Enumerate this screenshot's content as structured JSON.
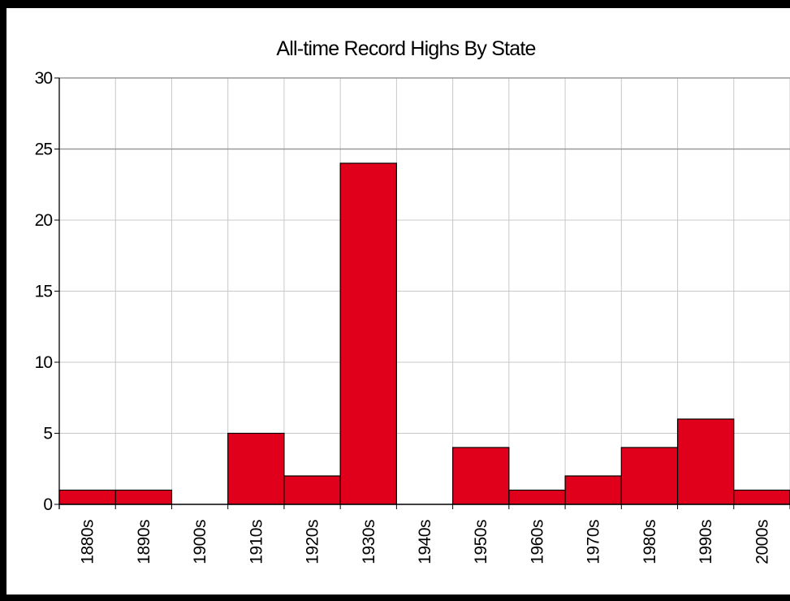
{
  "chart_data": {
    "type": "bar",
    "title": "All-time Record Highs By State",
    "xlabel": "",
    "ylabel": "",
    "categories": [
      "1880s",
      "1890s",
      "1900s",
      "1910s",
      "1920s",
      "1930s",
      "1940s",
      "1950s",
      "1960s",
      "1970s",
      "1980s",
      "1990s",
      "2000s"
    ],
    "values": [
      1,
      1,
      0,
      5,
      2,
      24,
      0,
      4,
      1,
      2,
      4,
      6,
      1
    ],
    "ylim": [
      0,
      30
    ],
    "yticks": [
      "0",
      "5",
      "10",
      "15",
      "20",
      "25",
      "30"
    ],
    "grid": true,
    "legend": "none",
    "colors": {
      "bar_fill": "#e0001b",
      "bar_edge": "#000000",
      "grid": "#c8c8c8",
      "major_grid": "#9a9a9a",
      "axis": "#000000"
    }
  }
}
